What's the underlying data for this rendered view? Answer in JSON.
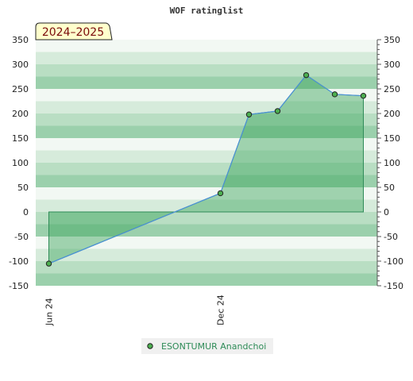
{
  "chart_data": {
    "type": "area",
    "title": "WOF ratinglist",
    "badge": "2024–2025",
    "ylim": [
      -150,
      350
    ],
    "yticks": [
      350,
      300,
      250,
      200,
      150,
      100,
      50,
      0,
      -50,
      -100,
      -150
    ],
    "x_ticks": [
      "Jun 24",
      "Dec 24"
    ],
    "series": [
      {
        "name": "ESONTUMUR Anandchoi",
        "points": [
          {
            "x": "2024-06",
            "y": -105
          },
          {
            "x": "2024-12",
            "y": 38
          },
          {
            "x": "2025-01",
            "y": 198
          },
          {
            "x": "2025-02",
            "y": 205
          },
          {
            "x": "2025-03",
            "y": 278
          },
          {
            "x": "2025-04",
            "y": 239
          },
          {
            "x": "2025-05",
            "y": 236
          }
        ]
      }
    ],
    "grid": true,
    "legend": "bottom",
    "colors": {
      "line": "#4a90d9",
      "fill": "#3aa35a",
      "point": "#4caf50",
      "badge_bg": "#ffffcc"
    }
  }
}
